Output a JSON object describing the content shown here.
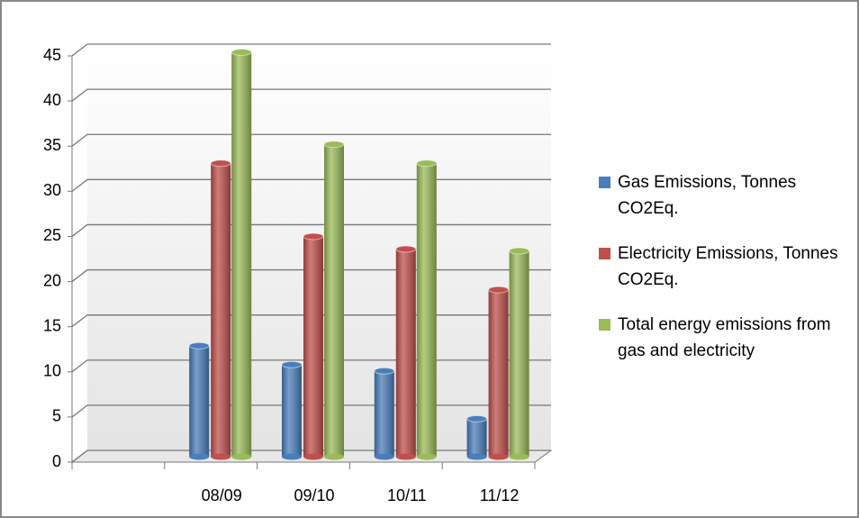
{
  "chart_data": {
    "type": "bar",
    "categories": [
      null,
      "08/09",
      "09/10",
      "10/11",
      "11/12"
    ],
    "series": [
      {
        "name": "Gas Emissions, Tonnes CO2Eq.",
        "color": "#4a7ebb",
        "values": [
          null,
          12.3,
          10.2,
          9.5,
          4.2
        ]
      },
      {
        "name": "Electricity Emissions, Tonnes CO2Eq.",
        "color": "#c0504d",
        "values": [
          null,
          32.5,
          24.4,
          23.0,
          18.5
        ]
      },
      {
        "name": "Total energy emissions from gas and electricity",
        "color": "#9bbb59",
        "values": [
          null,
          44.8,
          34.6,
          32.5,
          22.8
        ]
      }
    ],
    "ylim": [
      0,
      45
    ],
    "yticks": [
      0,
      5,
      10,
      15,
      20,
      25,
      30,
      35,
      40,
      45
    ],
    "grid": true,
    "legend": "right"
  }
}
